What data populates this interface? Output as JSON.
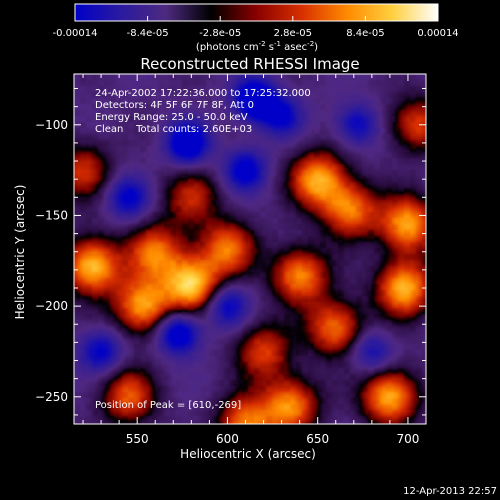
{
  "colorbar": {
    "ticks": [
      "-0.00014",
      "-8.4e-05",
      "-2.8e-05",
      "2.8e-05",
      "8.4e-05",
      "0.00014"
    ],
    "tick_values": [
      -0.00014,
      -8.4e-05,
      -2.8e-05,
      2.8e-05,
      8.4e-05,
      0.00014
    ],
    "range": [
      -0.00014,
      0.00014
    ],
    "units_base": "(photons cm",
    "units_exp1": "-2",
    "units_mid": " s",
    "units_exp2": "-1",
    "units_end": " asec",
    "units_exp3": "-2",
    "units_close": ")",
    "colors": [
      "#0000c8",
      "#2a1aa0",
      "#4d2a80",
      "#000000",
      "#8a0000",
      "#d83000",
      "#ff8a00",
      "#ffd040",
      "#ffffff"
    ]
  },
  "chart_data": {
    "type": "heatmap",
    "title": "Reconstructed RHESSI Image",
    "xlabel": "Heliocentric X (arcsec)",
    "ylabel": "Heliocentric Y (arcsec)",
    "xlim": [
      515,
      710
    ],
    "ylim": [
      -265,
      -72
    ],
    "x_ticks": [
      550,
      600,
      650,
      700
    ],
    "y_ticks": [
      -100,
      -150,
      -200,
      -250
    ],
    "x_tick_labels": [
      "550",
      "600",
      "650",
      "700"
    ],
    "y_tick_labels": [
      "−100",
      "−150",
      "−200",
      "−250"
    ],
    "annotations": {
      "line1": "24-Apr-2002 17:22:36.000 to 17:25:32.000",
      "line2": "Detectors: 4F 5F 6F 7F 8F, Att 0",
      "line3": "Energy Range: 25.0 - 50.0 keV",
      "line4": "Clean    Total counts: 2.60E+03",
      "peak": "Position of Peak = [610,-269]"
    },
    "peak_position": [
      610,
      -269
    ],
    "bright_sources": [
      {
        "x": 525,
        "y": -178,
        "level": 0.95
      },
      {
        "x": 553,
        "y": -200,
        "level": 0.85
      },
      {
        "x": 580,
        "y": -188,
        "level": 0.95
      },
      {
        "x": 560,
        "y": -170,
        "level": 0.7
      },
      {
        "x": 640,
        "y": -183,
        "level": 0.8
      },
      {
        "x": 650,
        "y": -130,
        "level": 0.85
      },
      {
        "x": 668,
        "y": -147,
        "level": 0.75
      },
      {
        "x": 700,
        "y": -155,
        "level": 0.85
      },
      {
        "x": 698,
        "y": -190,
        "level": 0.9
      },
      {
        "x": 660,
        "y": -212,
        "level": 0.75
      },
      {
        "x": 600,
        "y": -168,
        "level": 0.7
      },
      {
        "x": 620,
        "y": -225,
        "level": 0.6
      },
      {
        "x": 635,
        "y": -255,
        "level": 0.8
      },
      {
        "x": 690,
        "y": -250,
        "level": 0.9
      },
      {
        "x": 545,
        "y": -250,
        "level": 0.65
      },
      {
        "x": 610,
        "y": -265,
        "level": 0.75
      },
      {
        "x": 705,
        "y": -100,
        "level": 0.6
      },
      {
        "x": 520,
        "y": -125,
        "level": 0.55
      },
      {
        "x": 580,
        "y": -140,
        "level": 0.5
      }
    ],
    "dark_sources": [
      {
        "x": 578,
        "y": -110,
        "level": -0.9
      },
      {
        "x": 615,
        "y": -86,
        "level": -0.95
      },
      {
        "x": 573,
        "y": -215,
        "level": -0.85
      },
      {
        "x": 610,
        "y": -125,
        "level": -0.7
      },
      {
        "x": 545,
        "y": -140,
        "level": -0.6
      },
      {
        "x": 630,
        "y": -95,
        "level": -0.6
      },
      {
        "x": 672,
        "y": -100,
        "level": -0.55
      },
      {
        "x": 600,
        "y": -200,
        "level": -0.6
      },
      {
        "x": 680,
        "y": -225,
        "level": -0.5
      },
      {
        "x": 530,
        "y": -225,
        "level": -0.6
      }
    ]
  },
  "footer": {
    "timestamp": "12-Apr-2013 22:57"
  }
}
